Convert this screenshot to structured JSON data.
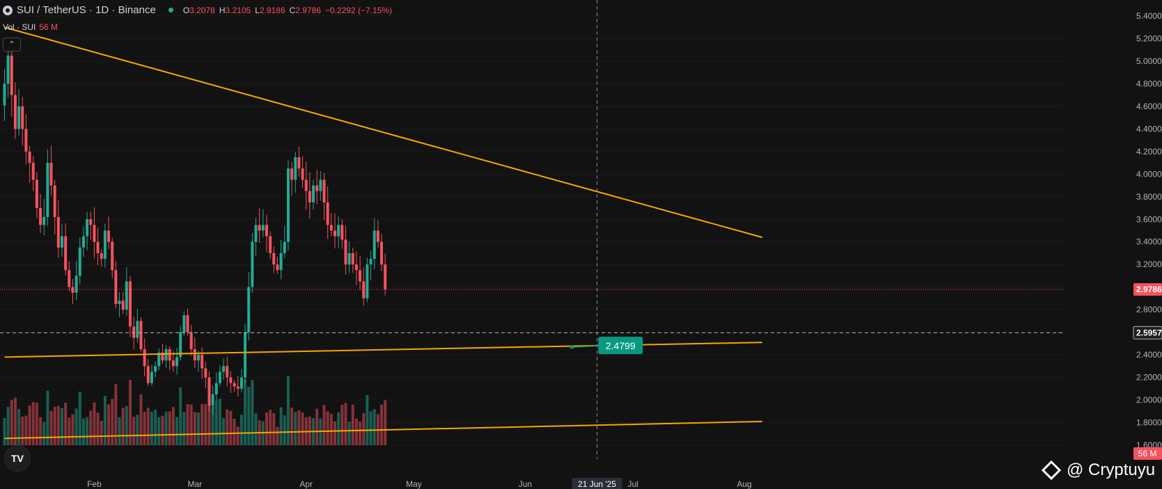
{
  "header": {
    "symbol": "SUI / TetherUS · 1D · Binance",
    "open_label": "O",
    "open": "3.2078",
    "high_label": "H",
    "high": "3.2105",
    "low_label": "L",
    "low": "2.9186",
    "close_label": "C",
    "close": "2.9786",
    "change": "−0.2292 (−7.15%)"
  },
  "volume_indicator": {
    "label": "Vol · SUI",
    "value": "56 M"
  },
  "collapse_button": "⌃",
  "tv_logo": "TV",
  "watermark": "@ Cryptuyu",
  "colors": {
    "background": "#121212",
    "up": "#22ab94",
    "down": "#f7525f",
    "trendline": "#f7a600",
    "label_bg": "#089981"
  },
  "chart_data": {
    "type": "candlestick",
    "y_axis": {
      "min": 1.6,
      "max": 5.4,
      "ticks": [
        "5.4000",
        "5.2000",
        "5.0000",
        "4.8000",
        "4.6000",
        "4.4000",
        "4.2000",
        "4.0000",
        "3.8000",
        "3.6000",
        "3.4000",
        "3.2000",
        "3.0000",
        "2.8000",
        "2.6000",
        "2.4000",
        "2.2000",
        "2.0000",
        "1.8000",
        "1.6000"
      ]
    },
    "x_axis": {
      "labels": [
        {
          "label": "Feb",
          "day": 28
        },
        {
          "label": "Mar",
          "day": 56
        },
        {
          "label": "Apr",
          "day": 87
        },
        {
          "label": "May",
          "day": 117
        },
        {
          "label": "Jun",
          "day": 148
        },
        {
          "label": "21 Jun '25",
          "day": 168
        },
        {
          "label": "Jul",
          "day": 178
        },
        {
          "label": "Aug",
          "day": 209
        }
      ]
    },
    "start_date": "2025-01-04",
    "closes": [
      4.8,
      5.05,
      4.7,
      4.4,
      4.6,
      4.4,
      4.2,
      4.1,
      3.95,
      3.7,
      3.55,
      3.62,
      4.1,
      3.9,
      3.62,
      3.35,
      3.45,
      3.15,
      3.0,
      2.95,
      3.1,
      3.35,
      3.45,
      3.6,
      3.55,
      3.4,
      3.3,
      3.25,
      3.5,
      3.4,
      3.15,
      2.85,
      2.88,
      2.8,
      3.05,
      2.65,
      2.55,
      2.7,
      2.45,
      2.3,
      2.15,
      2.25,
      2.3,
      2.42,
      2.35,
      2.45,
      2.35,
      2.3,
      2.38,
      2.6,
      2.75,
      2.6,
      2.45,
      2.35,
      2.4,
      2.28,
      2.2,
      1.95,
      2.05,
      2.15,
      2.25,
      2.3,
      2.2,
      2.15,
      2.12,
      2.1,
      2.2,
      2.6,
      3.0,
      3.4,
      3.55,
      3.5,
      3.55,
      3.45,
      3.3,
      3.2,
      3.15,
      3.3,
      3.4,
      4.05,
      3.95,
      4.15,
      4.05,
      3.95,
      3.85,
      3.75,
      3.9,
      3.85,
      3.95,
      3.75,
      3.55,
      3.5,
      3.45,
      3.55,
      3.42,
      3.2,
      3.3,
      3.2,
      3.15,
      3.05,
      2.9,
      3.2,
      3.25,
      3.5,
      3.4,
      3.2,
      2.9786
    ],
    "trendlines": [
      {
        "name": "descending resistance",
        "from": {
          "day": 3,
          "price": 5.3
        },
        "to": {
          "day": 214,
          "price": 3.44
        }
      },
      {
        "name": "support",
        "from": {
          "day": 3,
          "price": 2.38
        },
        "to": {
          "day": 214,
          "price": 2.51
        }
      },
      {
        "name": "lower support",
        "from": {
          "day": 3,
          "price": 1.66
        },
        "to": {
          "day": 214,
          "price": 1.81
        }
      }
    ],
    "horizontal_lines": [
      {
        "price": 2.9786,
        "label": "2.9786",
        "style": "dotted",
        "color": "#f7525f"
      },
      {
        "price": 2.5957,
        "label": "2.5957",
        "style": "dashed",
        "color": "#b2b5be"
      }
    ],
    "crosshair": {
      "day": 168,
      "label": "21 Jun '25"
    },
    "marker": {
      "day": 166,
      "price": 2.4799,
      "label": "2.4799"
    },
    "volume_scale_max": 100,
    "volume_badge": "56 M"
  }
}
